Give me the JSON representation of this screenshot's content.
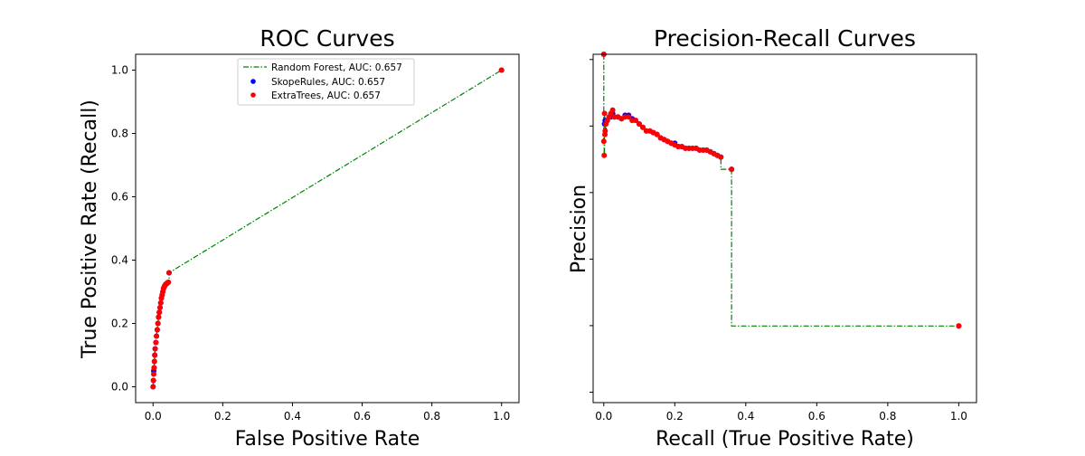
{
  "chart_data": [
    {
      "type": "line",
      "title": "ROC Curves",
      "xlabel": "False Positive Rate",
      "ylabel": "True Positive Rate (Recall)",
      "xlim": [
        -0.05,
        1.05
      ],
      "ylim": [
        -0.05,
        1.05
      ],
      "xticks": [
        "0.0",
        "0.2",
        "0.4",
        "0.6",
        "0.8",
        "1.0"
      ],
      "yticks": [
        "0.0",
        "0.2",
        "0.4",
        "0.6",
        "0.8",
        "1.0"
      ],
      "grid": false,
      "legend_position": "top-center",
      "series": [
        {
          "name": "Random Forest, AUC: 0.657",
          "style": "dash-dot line",
          "color": "#008000",
          "x": [
            0.0,
            0.001,
            0.002,
            0.003,
            0.004,
            0.005,
            0.006,
            0.008,
            0.01,
            0.012,
            0.014,
            0.016,
            0.018,
            0.02,
            0.022,
            0.024,
            0.026,
            0.028,
            0.03,
            0.032,
            0.034,
            0.036,
            0.038,
            0.04,
            0.042,
            0.044,
            0.046,
            0.046,
            1.0
          ],
          "y": [
            0.0,
            0.02,
            0.04,
            0.06,
            0.08,
            0.1,
            0.12,
            0.14,
            0.16,
            0.18,
            0.2,
            0.22,
            0.235,
            0.25,
            0.265,
            0.28,
            0.29,
            0.3,
            0.31,
            0.315,
            0.32,
            0.323,
            0.325,
            0.327,
            0.329,
            0.33,
            0.33,
            0.36,
            1.0
          ]
        },
        {
          "name": "SkopeRules, AUC: 0.657",
          "style": "markers",
          "color": "#0000ff",
          "x": [
            0.0,
            0.001,
            0.002,
            0.003,
            0.004,
            0.005,
            0.006,
            0.008,
            0.01,
            0.012,
            0.014,
            0.016,
            0.018,
            0.02,
            0.022,
            0.024,
            0.026,
            0.028,
            0.03,
            0.032,
            0.034,
            0.036,
            0.038,
            0.04,
            0.042,
            0.044,
            0.046,
            1.0
          ],
          "y": [
            0.0,
            0.02,
            0.05,
            0.06,
            0.08,
            0.1,
            0.12,
            0.14,
            0.16,
            0.18,
            0.2,
            0.22,
            0.235,
            0.25,
            0.265,
            0.28,
            0.29,
            0.3,
            0.31,
            0.315,
            0.32,
            0.323,
            0.325,
            0.327,
            0.329,
            0.33,
            0.36,
            1.0
          ]
        },
        {
          "name": "ExtraTrees, AUC: 0.657",
          "style": "markers",
          "color": "#ff0000",
          "x": [
            0.0,
            0.001,
            0.002,
            0.003,
            0.004,
            0.005,
            0.006,
            0.008,
            0.01,
            0.012,
            0.014,
            0.016,
            0.018,
            0.02,
            0.022,
            0.024,
            0.026,
            0.028,
            0.03,
            0.032,
            0.034,
            0.036,
            0.038,
            0.04,
            0.042,
            0.044,
            0.046,
            1.0
          ],
          "y": [
            0.0,
            0.02,
            0.04,
            0.06,
            0.08,
            0.1,
            0.12,
            0.14,
            0.16,
            0.18,
            0.2,
            0.22,
            0.235,
            0.25,
            0.265,
            0.28,
            0.29,
            0.3,
            0.31,
            0.315,
            0.32,
            0.323,
            0.325,
            0.327,
            0.329,
            0.33,
            0.36,
            1.0
          ]
        }
      ]
    },
    {
      "type": "line",
      "title": "Precision-Recall Curves",
      "xlabel": "Recall (True Positive Rate)",
      "ylabel": "Precision",
      "xlim": [
        -0.03,
        1.05
      ],
      "ylim": [
        0.0,
        1.0
      ],
      "xticks": [
        "0.0",
        "0.2",
        "0.4",
        "0.6",
        "0.8",
        "1.0"
      ],
      "yticks_labeled": false,
      "grid": false,
      "series": [
        {
          "name": "Random Forest",
          "style": "dash-dot step line",
          "color": "#008000",
          "x": [
            0.0,
            0.0,
            0.001,
            0.001,
            0.002,
            0.002,
            0.004,
            0.006,
            0.01,
            0.015,
            0.02,
            0.025,
            0.03,
            0.04,
            0.05,
            0.06,
            0.07,
            0.08,
            0.09,
            0.1,
            0.11,
            0.12,
            0.13,
            0.14,
            0.15,
            0.16,
            0.17,
            0.18,
            0.19,
            0.2,
            0.21,
            0.22,
            0.23,
            0.24,
            0.25,
            0.26,
            0.27,
            0.28,
            0.29,
            0.3,
            0.31,
            0.32,
            0.33,
            0.33,
            0.36,
            0.36,
            1.0
          ],
          "y": [
            1.0,
            0.75,
            0.75,
            0.71,
            0.71,
            0.83,
            0.8,
            0.78,
            0.81,
            0.82,
            0.83,
            0.84,
            0.82,
            0.82,
            0.815,
            0.82,
            0.82,
            0.81,
            0.81,
            0.8,
            0.79,
            0.78,
            0.78,
            0.775,
            0.77,
            0.76,
            0.755,
            0.75,
            0.745,
            0.74,
            0.735,
            0.735,
            0.73,
            0.73,
            0.73,
            0.73,
            0.725,
            0.725,
            0.725,
            0.72,
            0.715,
            0.71,
            0.705,
            0.67,
            0.67,
            0.22,
            0.22
          ]
        },
        {
          "name": "SkopeRules",
          "style": "markers",
          "color": "#0000ff",
          "x": [
            0.0,
            0.002,
            0.004,
            0.006,
            0.01,
            0.015,
            0.02,
            0.025,
            0.03,
            0.04,
            0.05,
            0.06,
            0.07,
            0.08,
            0.09,
            0.1,
            0.11,
            0.12,
            0.13,
            0.14,
            0.15,
            0.16,
            0.17,
            0.18,
            0.19,
            0.2,
            0.21,
            0.22,
            0.23,
            0.24,
            0.25,
            0.26,
            0.27,
            0.28,
            0.29,
            0.3,
            0.31,
            0.32,
            0.33,
            0.36,
            1.0
          ],
          "y": [
            1.0,
            0.8,
            0.81,
            0.8,
            0.81,
            0.82,
            0.82,
            0.83,
            0.82,
            0.82,
            0.815,
            0.825,
            0.825,
            0.815,
            0.81,
            0.8,
            0.79,
            0.78,
            0.78,
            0.775,
            0.77,
            0.76,
            0.755,
            0.75,
            0.745,
            0.745,
            0.735,
            0.735,
            0.73,
            0.73,
            0.73,
            0.73,
            0.725,
            0.725,
            0.725,
            0.72,
            0.715,
            0.71,
            0.705,
            0.67,
            0.22
          ]
        },
        {
          "name": "ExtraTrees",
          "style": "markers",
          "color": "#ff0000",
          "x": [
            0.0,
            0.0,
            0.001,
            0.002,
            0.003,
            0.004,
            0.006,
            0.01,
            0.015,
            0.02,
            0.025,
            0.03,
            0.04,
            0.05,
            0.06,
            0.07,
            0.08,
            0.09,
            0.1,
            0.11,
            0.12,
            0.13,
            0.14,
            0.15,
            0.16,
            0.17,
            0.18,
            0.19,
            0.2,
            0.21,
            0.22,
            0.23,
            0.24,
            0.25,
            0.26,
            0.27,
            0.28,
            0.29,
            0.3,
            0.31,
            0.32,
            0.33,
            0.36,
            1.0
          ],
          "y": [
            1.0,
            0.75,
            0.71,
            0.83,
            0.77,
            0.78,
            0.8,
            0.81,
            0.82,
            0.83,
            0.84,
            0.82,
            0.82,
            0.815,
            0.82,
            0.82,
            0.81,
            0.81,
            0.8,
            0.79,
            0.78,
            0.78,
            0.775,
            0.77,
            0.76,
            0.755,
            0.75,
            0.745,
            0.74,
            0.735,
            0.735,
            0.73,
            0.73,
            0.73,
            0.73,
            0.725,
            0.725,
            0.725,
            0.72,
            0.715,
            0.71,
            0.705,
            0.67,
            0.22
          ]
        }
      ]
    }
  ]
}
